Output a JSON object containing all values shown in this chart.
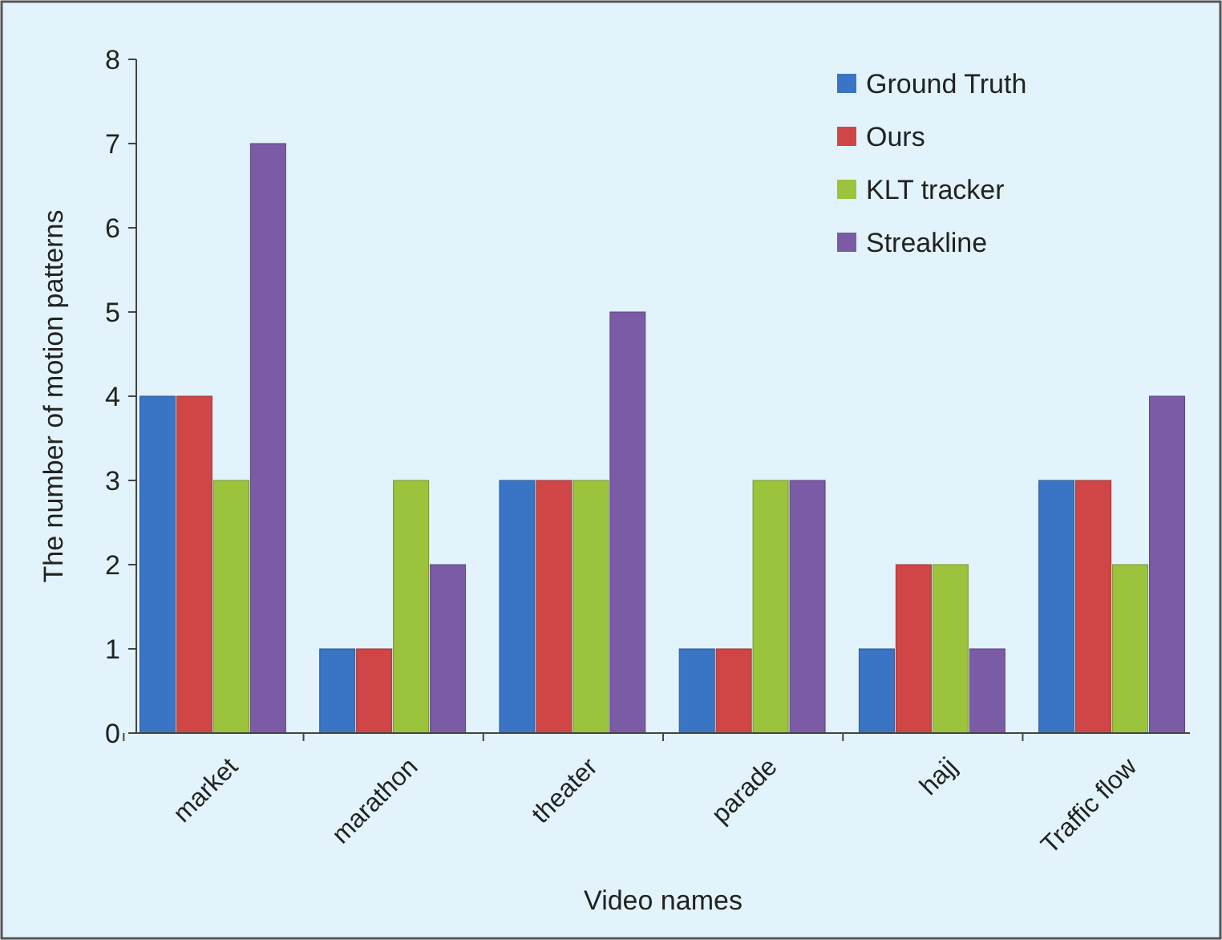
{
  "chart_data": {
    "type": "bar",
    "xlabel": "Video names",
    "ylabel": "The number of motion patterns",
    "categories": [
      "market",
      "marathon",
      "theater",
      "parade",
      "hajj",
      "Traffic flow"
    ],
    "series": [
      {
        "name": "Ground Truth",
        "color": "#3a74c4",
        "values": [
          4,
          1,
          3,
          1,
          1,
          3
        ]
      },
      {
        "name": "Ours",
        "color": "#d04545",
        "values": [
          4,
          1,
          3,
          1,
          2,
          3
        ]
      },
      {
        "name": "KLT tracker",
        "color": "#9bc43c",
        "values": [
          3,
          3,
          3,
          3,
          2,
          2
        ]
      },
      {
        "name": "Streakline",
        "color": "#7b5ba6",
        "values": [
          7,
          2,
          5,
          3,
          1,
          4
        ]
      }
    ],
    "ylim": [
      0,
      8
    ],
    "yticks": [
      0,
      1,
      2,
      3,
      4,
      5,
      6,
      7,
      8
    ],
    "legend": "top right"
  }
}
